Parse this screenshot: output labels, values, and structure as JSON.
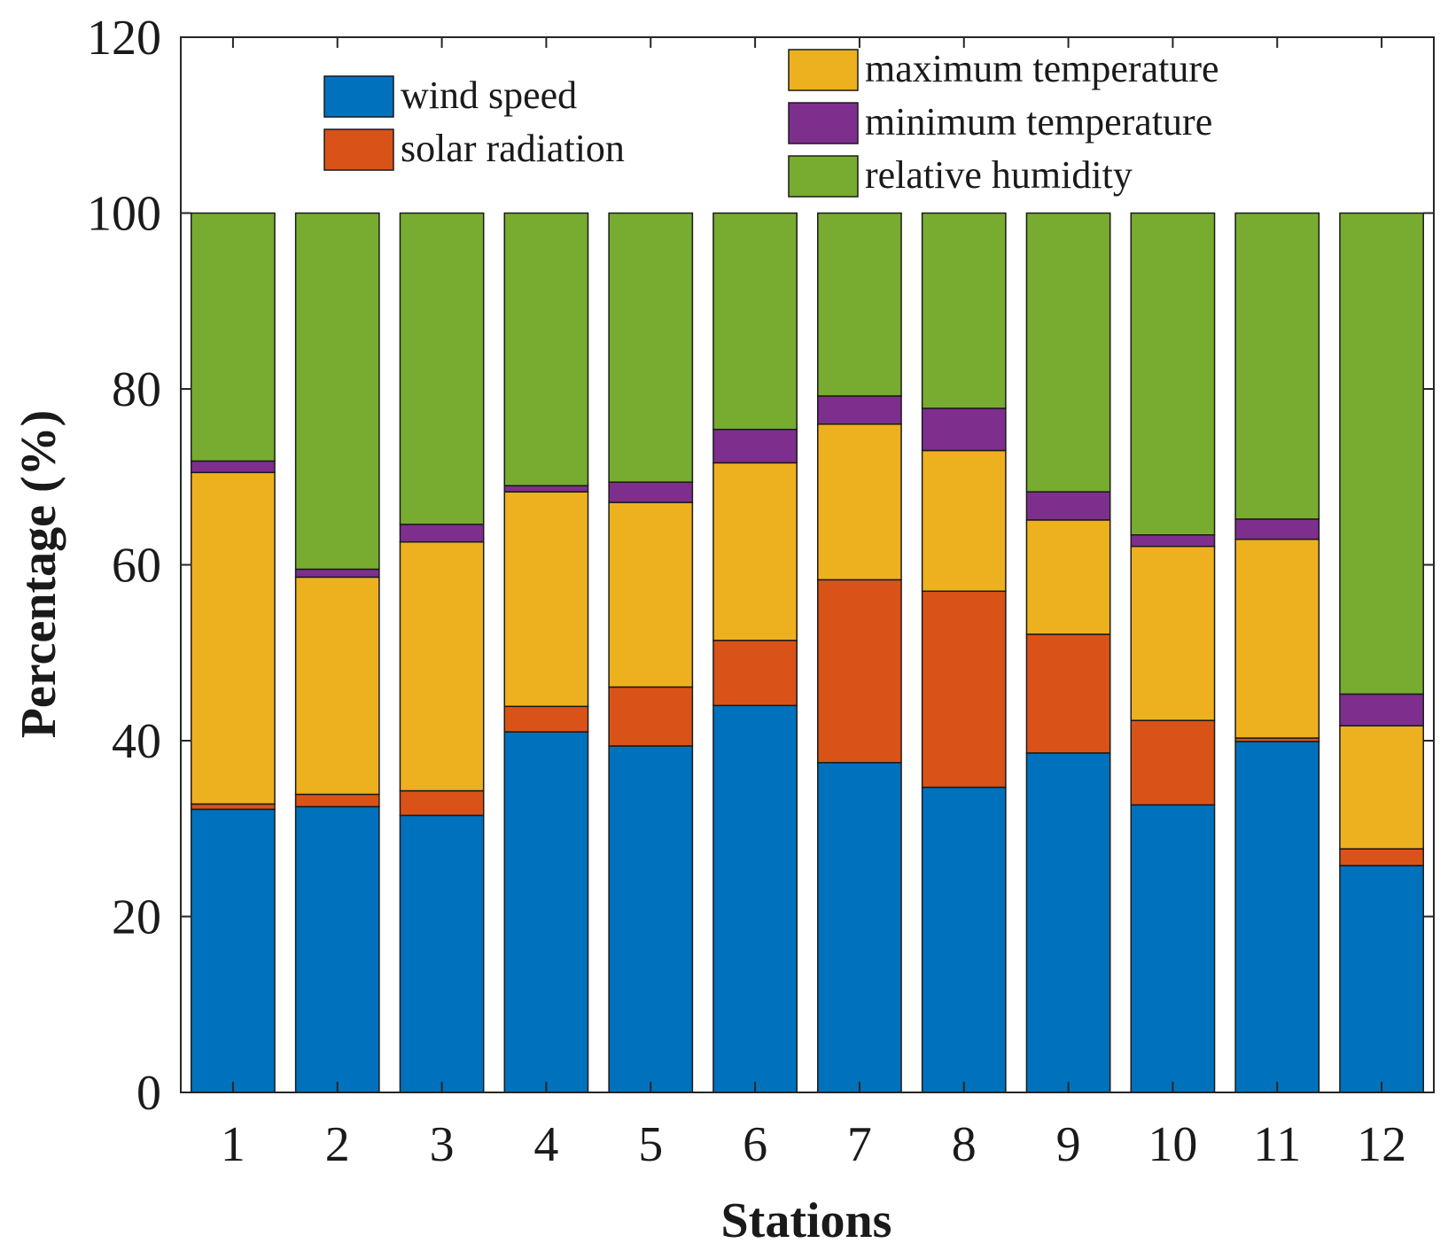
{
  "chart_data": {
    "type": "bar",
    "stacked": true,
    "title": "",
    "xlabel": "Stations",
    "ylabel": "Percentage (%)",
    "ylim": [
      0,
      120
    ],
    "yticks": [
      0,
      20,
      40,
      60,
      80,
      100,
      120
    ],
    "categories": [
      "1",
      "2",
      "3",
      "4",
      "5",
      "6",
      "7",
      "8",
      "9",
      "10",
      "11",
      "12"
    ],
    "series": [
      {
        "name": "wind speed",
        "color": "#0072BD",
        "values": [
          32.2,
          32.5,
          31.5,
          41.0,
          39.4,
          44.0,
          37.5,
          34.7,
          38.6,
          32.7,
          39.9,
          25.8
        ]
      },
      {
        "name": "solar radiation",
        "color": "#D95319",
        "values": [
          0.6,
          1.4,
          2.8,
          2.9,
          6.7,
          7.4,
          20.8,
          22.3,
          13.5,
          9.6,
          0.4,
          1.9
        ]
      },
      {
        "name": "maximum temperature",
        "color": "#EDB120",
        "values": [
          37.7,
          24.7,
          28.3,
          24.4,
          21.0,
          20.2,
          17.7,
          16.0,
          13.0,
          19.8,
          22.6,
          14.0
        ]
      },
      {
        "name": "minimum temperature",
        "color": "#7E2F8E",
        "values": [
          1.3,
          0.9,
          2.0,
          0.7,
          2.3,
          3.8,
          3.2,
          4.8,
          3.2,
          1.3,
          2.3,
          3.6
        ]
      },
      {
        "name": "relative humidity",
        "color": "#77AC30",
        "values": [
          28.2,
          40.5,
          35.4,
          31.0,
          30.6,
          24.6,
          20.8,
          22.2,
          31.7,
          36.6,
          34.8,
          54.7
        ]
      }
    ],
    "legend": {
      "position": "top",
      "columns": 2
    }
  }
}
